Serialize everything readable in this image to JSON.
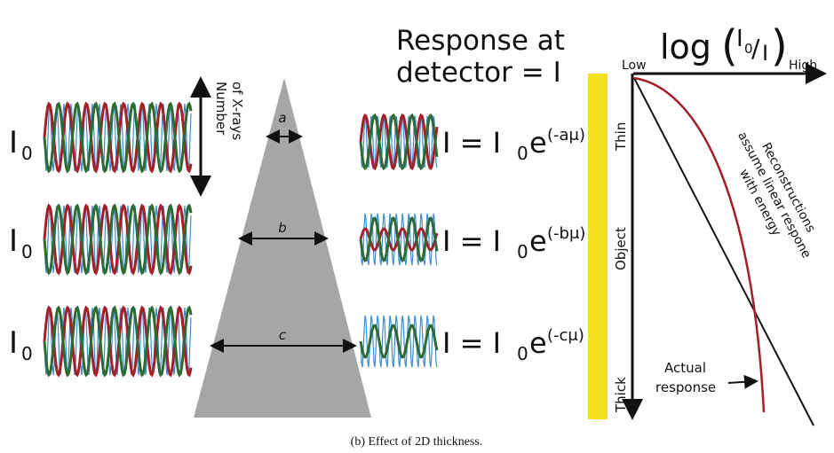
{
  "inputs": [
    {
      "label": "I",
      "subscript": "0"
    },
    {
      "label": "I",
      "subscript": "0"
    },
    {
      "label": "I",
      "subscript": "0"
    }
  ],
  "number_label": [
    "Number",
    "of X-rays"
  ],
  "widths": [
    "a",
    "b",
    "c"
  ],
  "response_title": [
    "Response at",
    "detector = I"
  ],
  "equations": [
    {
      "lhs": "I = I",
      "sub": "0",
      "base": "e",
      "exp": "(-aμ)"
    },
    {
      "lhs": "I = I",
      "sub": "0",
      "base": "e",
      "exp": "(-bμ)"
    },
    {
      "lhs": "I = I",
      "sub": "0",
      "base": "e",
      "exp": "(-cμ)"
    }
  ],
  "axis": {
    "low": "Low",
    "high": "High",
    "log": "log",
    "open": "(",
    "num": "I",
    "num_sub": "0",
    "slash": "/",
    "den": "I",
    "close": ")"
  },
  "thickness": {
    "thin": "Thin",
    "object": "Object",
    "thick": "Thick"
  },
  "reconstruction_note": [
    "Reconstructions",
    "assume linear respone",
    "with energy"
  ],
  "actual_label": [
    "Actual",
    "response"
  ],
  "caption": "(b) Effect of 2D thickness."
}
